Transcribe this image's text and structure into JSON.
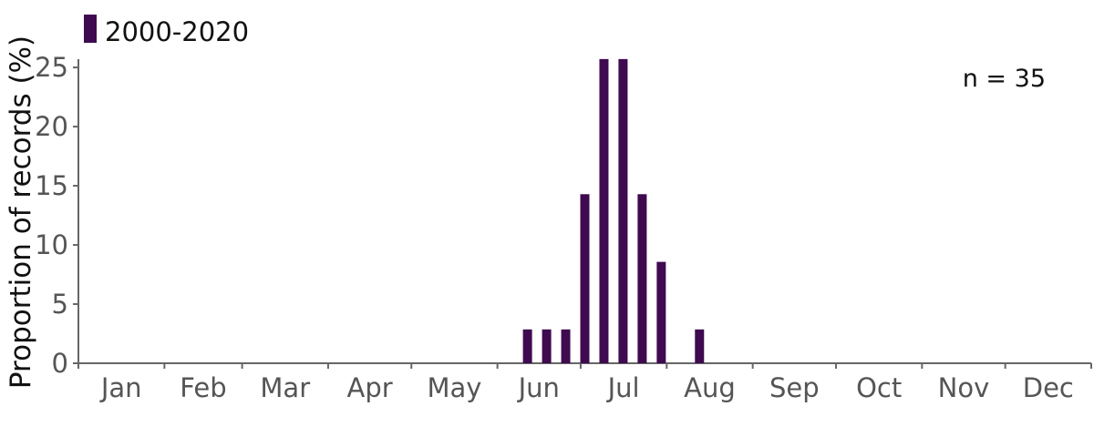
{
  "chart_data": {
    "type": "bar",
    "title": "",
    "xlabel": "",
    "ylabel": "Proportion of records (%)",
    "ylim": [
      0,
      25.7
    ],
    "yticks": [
      0,
      5,
      10,
      15,
      20,
      25
    ],
    "months": [
      "Jan",
      "Feb",
      "Mar",
      "Apr",
      "May",
      "Jun",
      "Jul",
      "Aug",
      "Sep",
      "Oct",
      "Nov",
      "Dec"
    ],
    "x_unit": "week of year",
    "series": [
      {
        "name": "2000-2020",
        "color": "#3f0a4f",
        "points": [
          {
            "x": 24,
            "y": 2.86
          },
          {
            "x": 25,
            "y": 2.86
          },
          {
            "x": 26,
            "y": 2.86
          },
          {
            "x": 27,
            "y": 14.29
          },
          {
            "x": 28,
            "y": 25.71
          },
          {
            "x": 29,
            "y": 25.71
          },
          {
            "x": 30,
            "y": 14.29
          },
          {
            "x": 31,
            "y": 8.57
          },
          {
            "x": 33,
            "y": 2.86
          }
        ]
      }
    ],
    "legend_position": "top-left",
    "annotation": "n = 35",
    "grid": false
  }
}
